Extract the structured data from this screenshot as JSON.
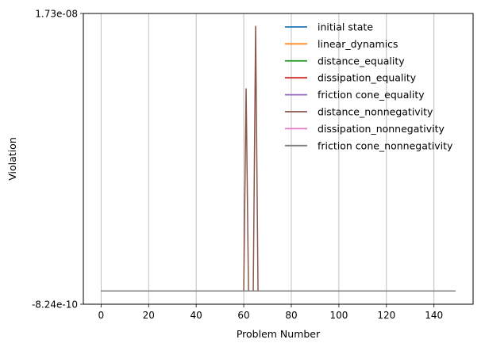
{
  "chart_data": {
    "type": "line",
    "title": "",
    "xlabel": "Problem Number",
    "ylabel": "Violation",
    "xlim": [
      -7.45,
      156.45
    ],
    "ylim": [
      -8.24e-10,
      1.73e-08
    ],
    "xticks": [
      0,
      20,
      40,
      60,
      80,
      100,
      120,
      140
    ],
    "xtick_labels": [
      "0",
      "20",
      "40",
      "60",
      "80",
      "100",
      "120",
      "140"
    ],
    "yticks": [
      -8.24e-10,
      1.73e-08
    ],
    "ytick_labels": [
      "-8.24e-10",
      "1.73e-08"
    ],
    "grid": {
      "x": true,
      "y": false
    },
    "legend_position": "top-right",
    "colors": {
      "initial state": "#1f77b4",
      "linear_dynamics": "#ff7f0e",
      "distance_equality": "#2ca02c",
      "dissipation_equality": "#d62728",
      "friction cone_equality": "#9467bd",
      "distance_nonnegativity": "#8c564b",
      "dissipation_nonnegativity": "#e377c2",
      "friction cone_nonnegativity": "#7f7f7f"
    },
    "x_range": [
      0,
      149
    ],
    "series": [
      {
        "name": "initial state",
        "baseline": 0,
        "points": []
      },
      {
        "name": "linear_dynamics",
        "baseline": 0,
        "points": []
      },
      {
        "name": "distance_equality",
        "baseline": 0,
        "points": []
      },
      {
        "name": "dissipation_equality",
        "baseline": 0,
        "points": []
      },
      {
        "name": "friction cone_equality",
        "baseline": 0,
        "points": []
      },
      {
        "name": "distance_nonnegativity",
        "baseline": 0,
        "points": [
          [
            60,
            0
          ],
          [
            61,
            1.26e-08
          ],
          [
            62,
            0
          ],
          [
            64,
            0
          ],
          [
            65,
            1.65e-08
          ],
          [
            66,
            0
          ]
        ]
      },
      {
        "name": "dissipation_nonnegativity",
        "baseline": 0,
        "points": []
      },
      {
        "name": "friction cone_nonnegativity",
        "baseline": 0,
        "points": []
      }
    ]
  }
}
